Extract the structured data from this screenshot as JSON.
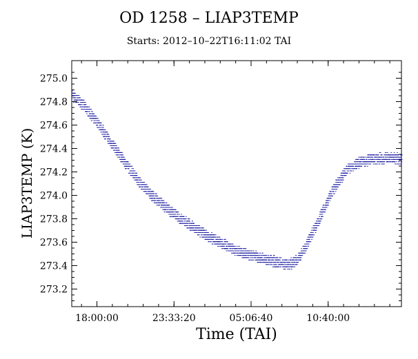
{
  "chart_data": {
    "type": "scatter",
    "title": "OD 1258 – LIAP3TEMP",
    "subtitle": "Starts: 2012–10–22T16:11:02 TAI",
    "xlabel": "Time (TAI)",
    "ylabel": "LIAP3TEMP (K)",
    "x_ticks": [
      "18:00:00",
      "23:33:20",
      "05:06:40",
      "10:40:00"
    ],
    "x_tick_hours": [
      18.0,
      23.5556,
      29.1111,
      34.6667
    ],
    "xlim_hours": [
      16.1839,
      39.95
    ],
    "y_ticks": [
      "273.2",
      "273.4",
      "273.6",
      "273.8",
      "274.0",
      "274.2",
      "274.4",
      "274.6",
      "274.8",
      "275.0"
    ],
    "ylim": [
      273.05,
      275.15
    ],
    "color": "#1a1aa0",
    "series": [
      {
        "x_hours": [
          16.18,
          17.0,
          18.0,
          19.0,
          20.0,
          21.0,
          22.0,
          23.0,
          24.0,
          25.0,
          26.0,
          27.0,
          28.0,
          29.0,
          30.0,
          31.0,
          31.5,
          32.0,
          32.5,
          33.0,
          34.0,
          35.0,
          36.0,
          37.0,
          38.0,
          39.0,
          39.95
        ],
        "values": [
          274.85,
          274.77,
          274.62,
          274.45,
          274.28,
          274.12,
          273.99,
          273.89,
          273.8,
          273.72,
          273.65,
          273.59,
          273.53,
          273.49,
          273.46,
          273.43,
          273.41,
          273.42,
          273.46,
          273.56,
          273.8,
          274.05,
          274.22,
          274.29,
          274.31,
          274.32,
          274.31
        ]
      }
    ]
  }
}
